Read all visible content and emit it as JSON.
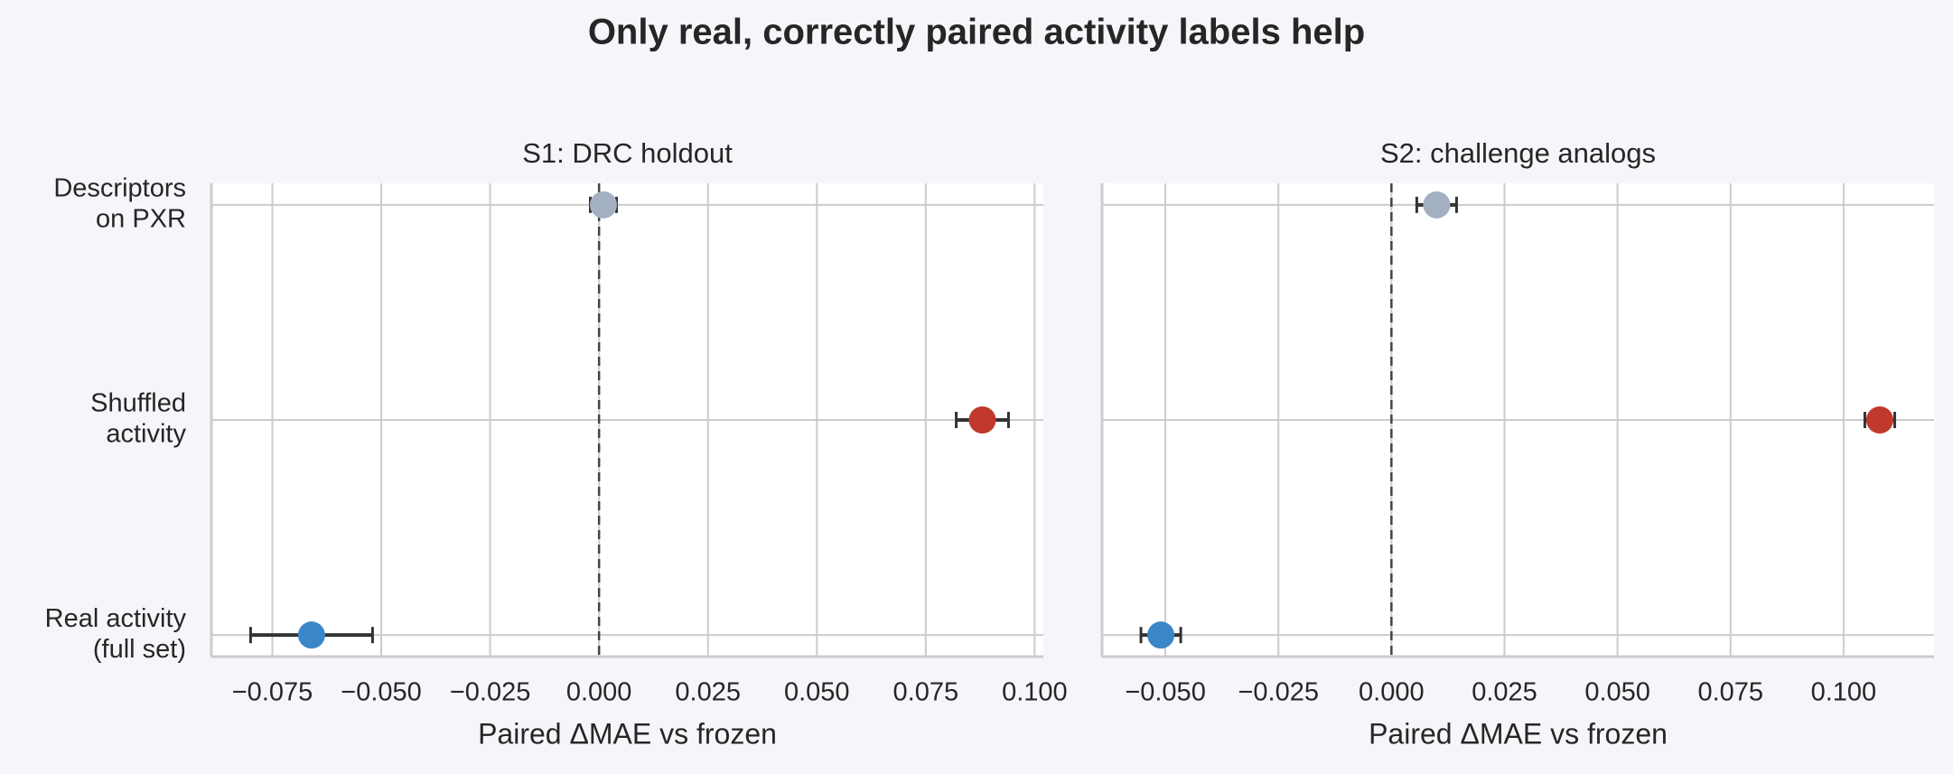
{
  "title": "Only real, correctly paired activity labels help",
  "chart_data": [
    {
      "type": "dot_error",
      "title": "S1: DRC holdout",
      "xlabel": "Paired ΔMAE vs frozen",
      "categories": [
        [
          "Descriptors",
          "on PXR"
        ],
        [
          "Shuffled",
          "activity"
        ],
        [
          "Real activity",
          "(full set)"
        ]
      ],
      "values": [
        0.001,
        0.088,
        -0.066
      ],
      "errors": [
        0.003,
        0.006,
        0.014
      ],
      "colors": [
        "#a3b0c2",
        "#c0392b",
        "#3a86c8"
      ],
      "xlim": [
        -0.089,
        0.102
      ],
      "xticks": [
        {
          "value": -0.075,
          "label": "−0.075"
        },
        {
          "value": -0.05,
          "label": "−0.050"
        },
        {
          "value": -0.025,
          "label": "−0.025"
        },
        {
          "value": 0,
          "label": "0.000"
        },
        {
          "value": 0.025,
          "label": "0.025"
        },
        {
          "value": 0.05,
          "label": "0.050"
        },
        {
          "value": 0.075,
          "label": "0.075"
        },
        {
          "value": 0.1,
          "label": "0.100"
        }
      ],
      "reference_line": 0,
      "grid": true
    },
    {
      "type": "dot_error",
      "title": "S2: challenge analogs",
      "xlabel": "Paired ΔMAE vs frozen",
      "categories": [
        [
          "Descriptors",
          "on PXR"
        ],
        [
          "Shuffled",
          "activity"
        ],
        [
          "Real activity",
          "(full set)"
        ]
      ],
      "values": [
        0.01,
        0.108,
        -0.051
      ],
      "errors": [
        0.0044,
        0.0033,
        0.0044
      ],
      "colors": [
        "#a3b0c2",
        "#c0392b",
        "#3a86c8"
      ],
      "xlim": [
        -0.064,
        0.12
      ],
      "xticks": [
        {
          "value": -0.05,
          "label": "−0.050"
        },
        {
          "value": -0.025,
          "label": "−0.025"
        },
        {
          "value": 0,
          "label": "0.000"
        },
        {
          "value": 0.025,
          "label": "0.025"
        },
        {
          "value": 0.05,
          "label": "0.050"
        },
        {
          "value": 0.075,
          "label": "0.075"
        },
        {
          "value": 0.1,
          "label": "0.100"
        }
      ],
      "reference_line": 0,
      "grid": true
    }
  ]
}
